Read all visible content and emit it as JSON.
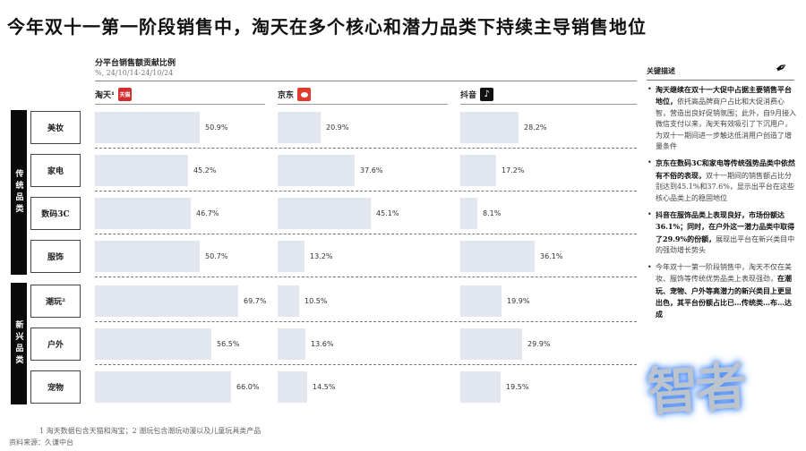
{
  "title": "今年双十一第一阶段销售中，淘天在多个核心和潜力品类下持续主导销售地位",
  "chart": {
    "title": "分平台销售额贡献比例",
    "subtitle": "%, 24/10/14-24/10/24",
    "platforms": [
      {
        "name": "淘天¹",
        "logo": "天猫",
        "logo_icon": "tmall-logo-icon"
      },
      {
        "name": "京东",
        "logo": "",
        "logo_icon": "jd-logo-icon"
      },
      {
        "name": "抖音",
        "logo": "♪",
        "logo_icon": "douyin-logo-icon"
      }
    ],
    "groups": [
      {
        "label": "传统品类",
        "categories": [
          "美妆",
          "家电",
          "数码3C",
          "服饰"
        ]
      },
      {
        "label": "新兴品类",
        "categories": [
          "潮玩²",
          "户外",
          "宠物"
        ]
      }
    ],
    "rows": [
      {
        "category": "美妆",
        "values": [
          "50.9%",
          "20.9%",
          "28.2%"
        ]
      },
      {
        "category": "家电",
        "values": [
          "45.2%",
          "37.6%",
          "17.2%"
        ]
      },
      {
        "category": "数码3C",
        "values": [
          "46.7%",
          "45.1%",
          "8.1%"
        ]
      },
      {
        "category": "服饰",
        "values": [
          "50.7%",
          "13.2%",
          "36.1%"
        ]
      },
      {
        "category": "潮玩²",
        "values": [
          "69.7%",
          "10.5%",
          "19.9%"
        ]
      },
      {
        "category": "户外",
        "values": [
          "56.5%",
          "13.6%",
          "29.9%"
        ]
      },
      {
        "category": "宠物",
        "values": [
          "66.0%",
          "14.5%",
          "19.5%"
        ]
      }
    ]
  },
  "chart_data": {
    "type": "bar",
    "title": "分平台销售额贡献比例",
    "subtitle": "%, 24/10/14-24/10/24",
    "orientation": "horizontal",
    "categories": [
      "美妆",
      "家电",
      "数码3C",
      "服饰",
      "潮玩",
      "户外",
      "宠物"
    ],
    "category_groups": {
      "传统品类": [
        "美妆",
        "家电",
        "数码3C",
        "服饰"
      ],
      "新兴品类": [
        "潮玩",
        "户外",
        "宠物"
      ]
    },
    "series": [
      {
        "name": "淘天",
        "values": [
          50.9,
          45.2,
          46.7,
          50.7,
          69.7,
          56.5,
          66.0
        ]
      },
      {
        "name": "京东",
        "values": [
          20.9,
          37.6,
          45.1,
          13.2,
          10.5,
          13.6,
          14.5
        ]
      },
      {
        "name": "抖音",
        "values": [
          28.2,
          17.2,
          8.1,
          36.1,
          19.9,
          29.9,
          19.5
        ]
      }
    ],
    "xlabel": "",
    "ylabel": "",
    "unit": "%",
    "grid": false,
    "legend": "platform column headers"
  },
  "sidebar": {
    "heading": "关键描述",
    "bullets": [
      {
        "bold": "淘天继续在双十一大促中占据主要销售平台地位，",
        "normal": "依托高品牌商户占比和大促消费心智，营造出良好促销氛围；此外，自9月接入微信支付以来，淘天有效吸引了下沉用户，为双十一期间进一步触达低消用户创造了增量条件"
      },
      {
        "bold": "京东在数码3C和家电等传统强势品类中依然有不俗的表现，",
        "normal": "双十一期间的销售额占比分别达到45.1%和37.6%，显示出平台在这些核心品类上的稳固地位"
      },
      {
        "bold": "抖音在服饰品类上表现良好，市场份额达36.1%；同时，在户外这一潜力品类中取得了29.9%的份额，",
        "normal": "展现出平台在新兴类目中的强劲增长势头"
      },
      {
        "normal": "今年双十一第一阶段销售中，淘天不仅在美妆、服饰等传统优势品类上表现强劲，",
        "bold": "在潮玩、宠物、户外等高潜力的新兴类目上更显出色，其平台份额占比已…传统类…布…达成"
      }
    ]
  },
  "footnote": "1 淘天数据包含天猫和淘宝；2 潮玩包含潮玩动漫以及儿童玩具类产品",
  "source": "资料来源：久谦中台",
  "watermark": "智者"
}
